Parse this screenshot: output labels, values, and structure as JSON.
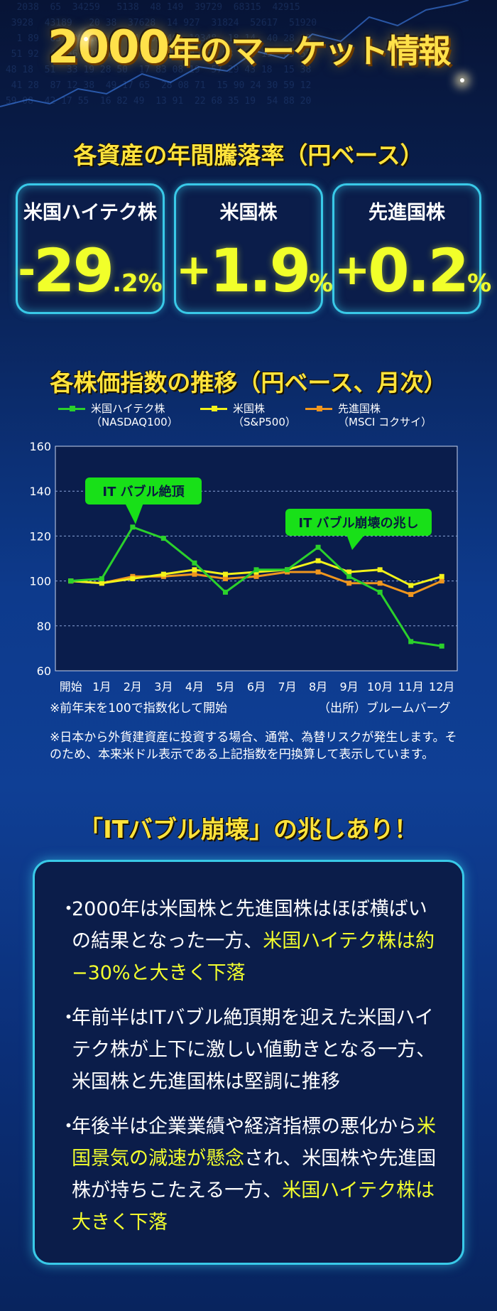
{
  "hero": {
    "title_year": "2000",
    "title_mid": "年の",
    "title_rest": "マーケット情報"
  },
  "section1": {
    "title": "各資産の年間騰落率（円ベース）"
  },
  "stats": [
    {
      "label": "米国ハイテク株",
      "sign": "-",
      "big": "29",
      "small": ".2",
      "unit": "%"
    },
    {
      "label": "米国株",
      "sign": "+",
      "big": "1.9",
      "small": "",
      "unit": "%"
    },
    {
      "label": "先進国株",
      "sign": "+",
      "big": "0.2",
      "small": "",
      "unit": "%"
    }
  ],
  "section2": {
    "title": "各株価指数の推移（円ベース、月次）"
  },
  "legend": [
    {
      "line1": "米国ハイテク株",
      "line2": "（NASDAQ100）",
      "color": "#2bd12b"
    },
    {
      "line1": "米国株",
      "line2": "（S&P500）",
      "color": "#f2f21a"
    },
    {
      "line1": "先進国株",
      "line2": "（MSCI コクサイ）",
      "color": "#f0961e"
    }
  ],
  "chart_data": {
    "type": "line",
    "categories": [
      "開始",
      "1月",
      "2月",
      "3月",
      "4月",
      "5月",
      "6月",
      "7月",
      "8月",
      "9月",
      "10月",
      "11月",
      "12月"
    ],
    "series": [
      {
        "name": "米国ハイテク株（NASDAQ100）",
        "color": "#2bd12b",
        "values": [
          100,
          101,
          124,
          119,
          108,
          95,
          105,
          105,
          115,
          102,
          95,
          73,
          71
        ]
      },
      {
        "name": "米国株（S&P500）",
        "color": "#f2f21a",
        "values": [
          100,
          99,
          101,
          103,
          105,
          103,
          104,
          105,
          109,
          104,
          105,
          98,
          102
        ]
      },
      {
        "name": "先進国株（MSCI コクサイ）",
        "color": "#f0961e",
        "values": [
          100,
          99,
          102,
          102,
          103,
          101,
          102,
          104,
          104,
          99,
          99,
          94,
          100
        ]
      }
    ],
    "ylim": [
      60,
      160
    ],
    "yticks": [
      60,
      80,
      100,
      120,
      140,
      160
    ],
    "grid": true,
    "annotations": [
      {
        "text": "IT バブル絶頂",
        "target_index": 2,
        "target_value": 124
      },
      {
        "text": "IT バブル崩壊の兆し",
        "target_index": 10,
        "target_value": 95
      }
    ]
  },
  "notes": {
    "left": "※前年末を100で指数化して開始",
    "right": "（出所）ブルームバーグ",
    "disclaimer": "※日本から外貨建資産に投資する場合、通常、為替リスクが発生します。そのため、本来米ドル表示である上記指数を円換算して表示しています。"
  },
  "section3": {
    "title": "「ITバブル崩壊」の兆しあり！"
  },
  "bullets": [
    {
      "a": "2000年は米国株と先進国株はほぼ横ばいの結果となった一方、",
      "b": "米国ハイテク株は約−30%と大きく下落",
      "c": "",
      "d": "",
      "e": ""
    },
    {
      "a": "年前半はITバブル絶頂期を迎えた米国ハイテク株が上下に激しい値動きとなる一方、米国株と先進国株は堅調に推移",
      "b": "",
      "c": "",
      "d": "",
      "e": ""
    },
    {
      "a": "年後半は企業業績や経済指標の悪化から",
      "b": "米国景気の減速が懸念",
      "c": "され、米国株や先進国株が持ちこたえる一方、",
      "d": "米国ハイテク株は大きく下落",
      "e": ""
    }
  ]
}
